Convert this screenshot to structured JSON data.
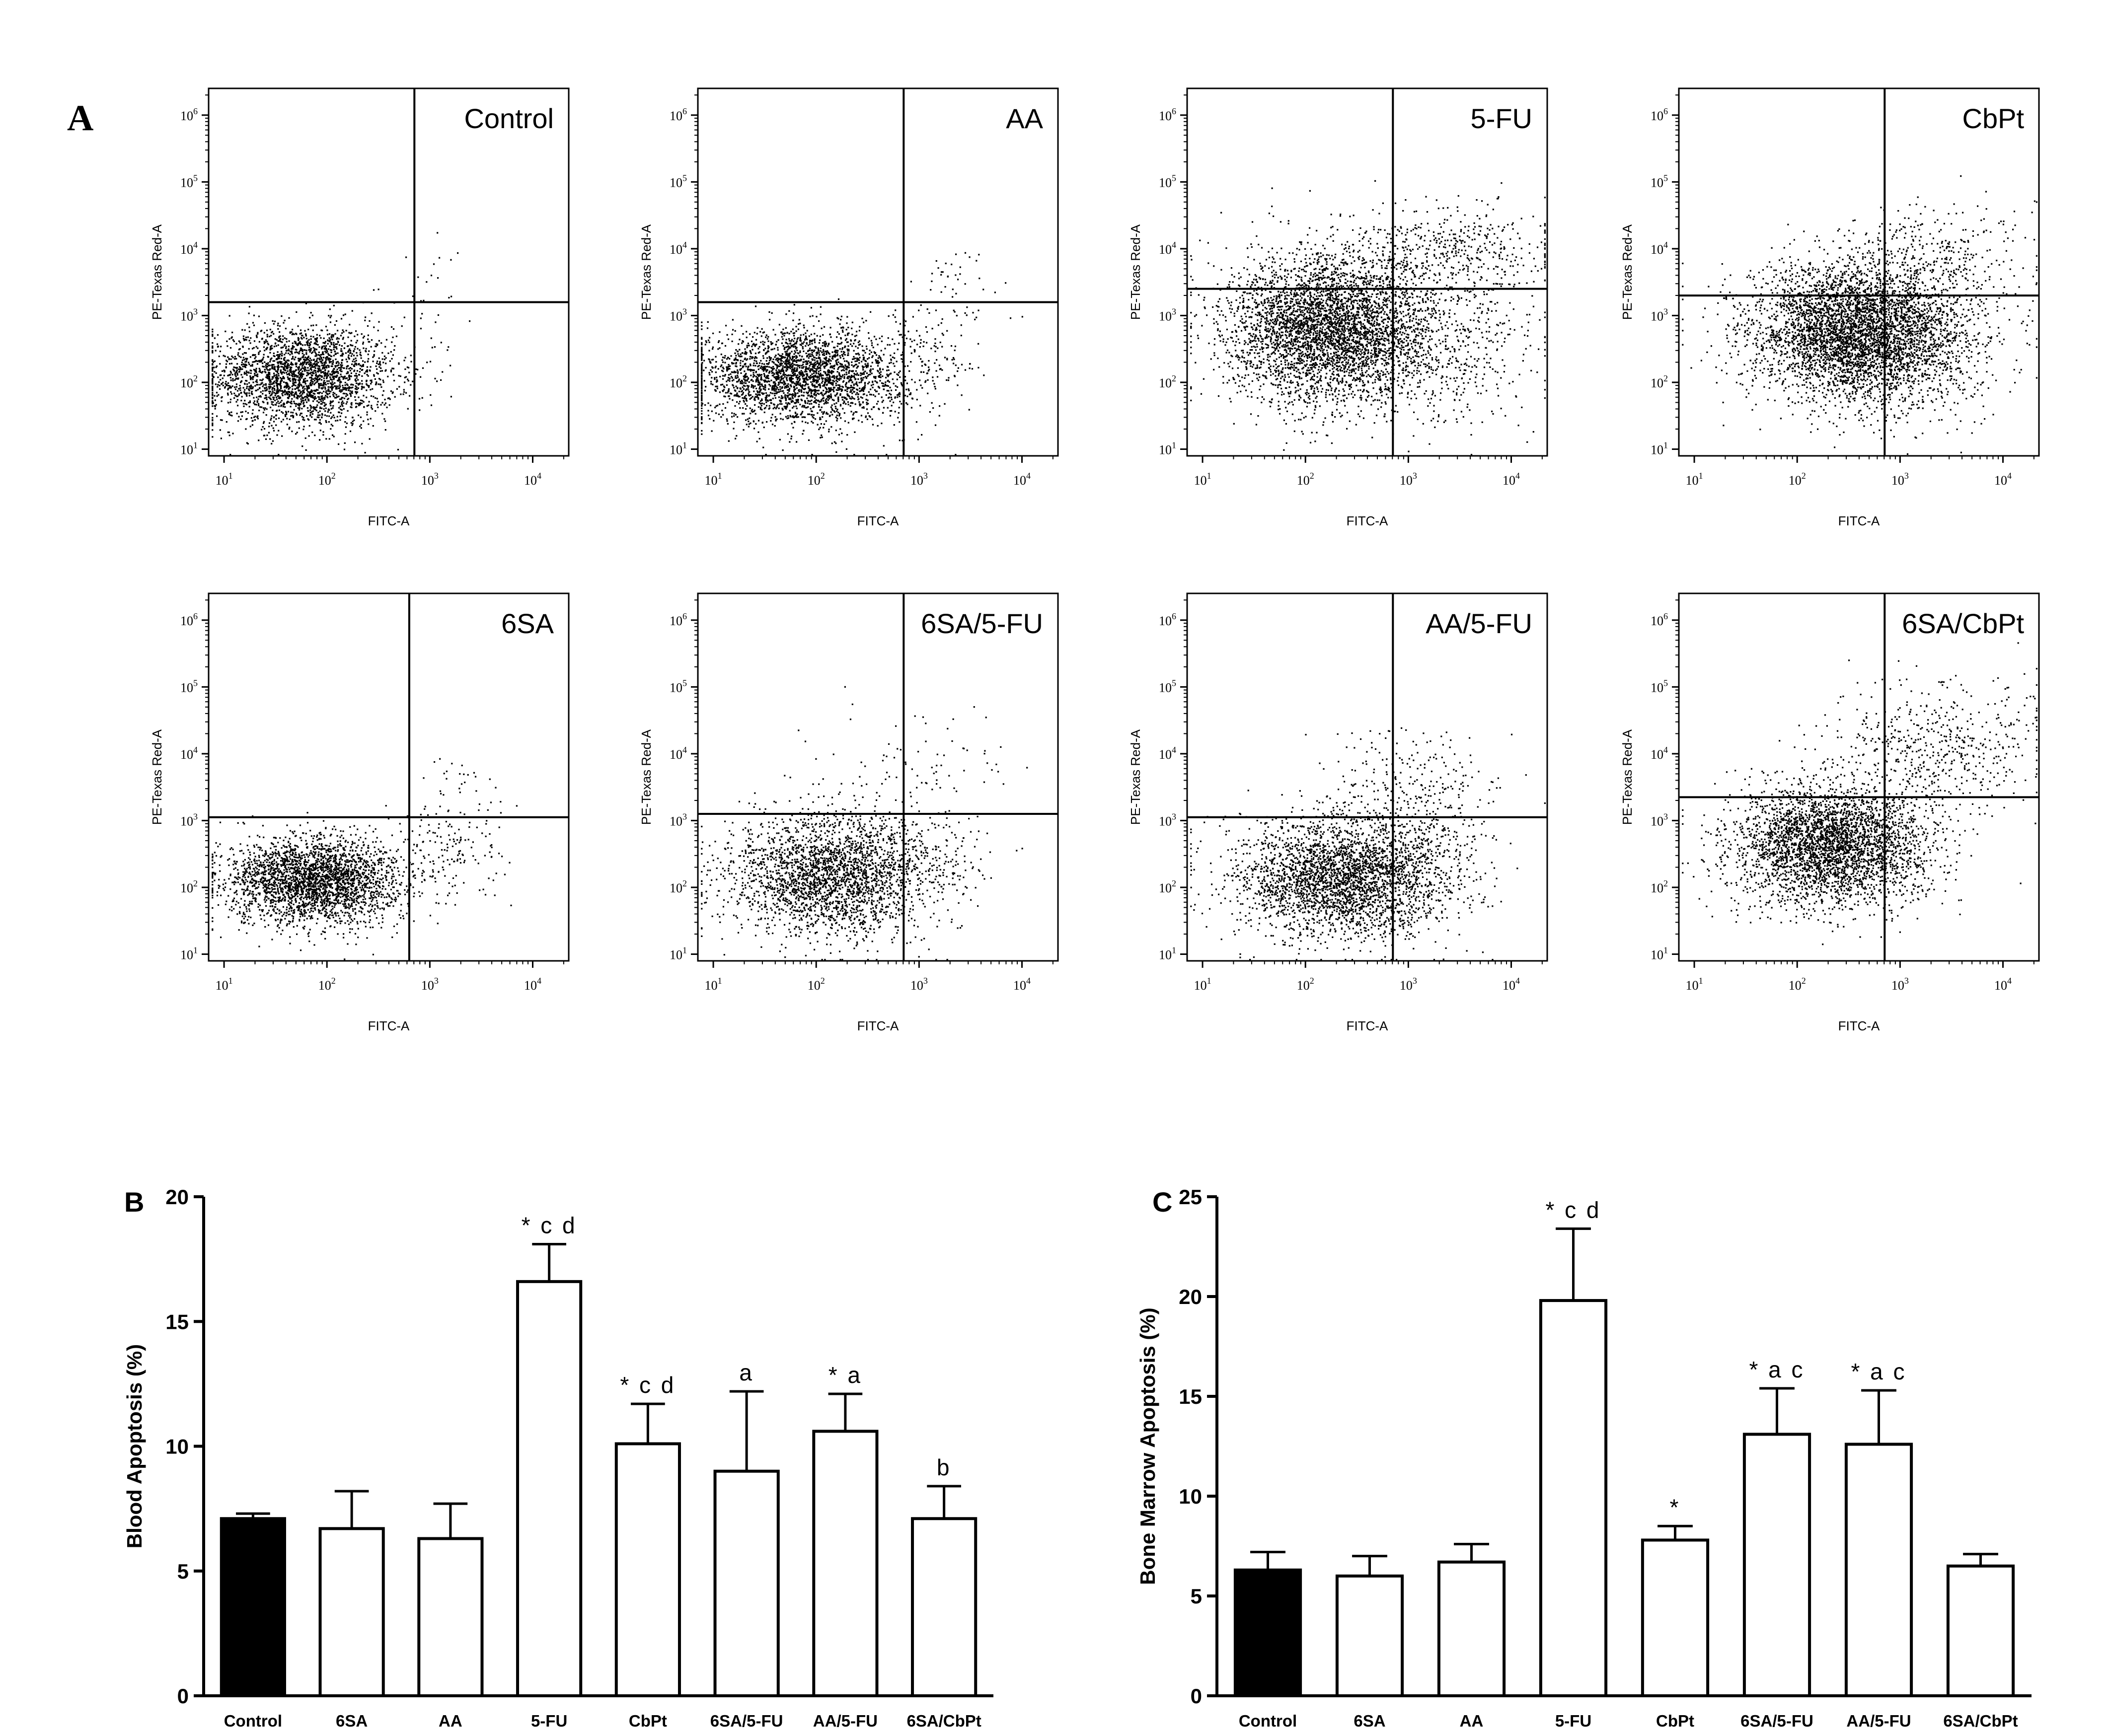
{
  "figure": {
    "panel_a_letter": "A",
    "panel_b_letter": "B",
    "panel_c_letter": "C",
    "colors": {
      "ink": "#000000",
      "control_fill": "#000000",
      "bar_fill": "#ffffff",
      "background": "#ffffff"
    }
  },
  "chart_data": [
    {
      "id": "A",
      "type": "scatter",
      "description_kind": "flow cytometry dot plots (8 panels)",
      "xlabel": "FITC-A",
      "ylabel": "PE-Texas Red-A",
      "x_ticks": [
        {
          "exp": 1,
          "label_base": "10",
          "label_exp": "1"
        },
        {
          "exp": 2,
          "label_base": "10",
          "label_exp": "2"
        },
        {
          "exp": 3,
          "label_base": "10",
          "label_exp": "3"
        },
        {
          "exp": 4,
          "label_base": "10",
          "label_exp": "4"
        }
      ],
      "y_ticks": [
        {
          "exp": 1,
          "label_base": "10",
          "label_exp": "1"
        },
        {
          "exp": 2,
          "label_base": "10",
          "label_exp": "2"
        },
        {
          "exp": 3,
          "label_base": "10",
          "label_exp": "3"
        },
        {
          "exp": 4,
          "label_base": "10",
          "label_exp": "4"
        },
        {
          "exp": 5,
          "label_base": "10",
          "label_exp": "5"
        },
        {
          "exp": 6,
          "label_base": "10",
          "label_exp": "6"
        }
      ],
      "xlim_log10": [
        0.85,
        4.35
      ],
      "ylim_log10": [
        0.9,
        6.4
      ],
      "panels": [
        {
          "title": "Control",
          "gate_x_log10": 2.85,
          "gate_y_log10": 3.2,
          "n_main": 2600,
          "main_center": [
            1.75,
            2.1
          ],
          "main_spread": [
            0.45,
            0.38
          ],
          "n_upper": 18,
          "upper_center": [
            3.0,
            3.7
          ],
          "upper_spread": [
            0.25,
            0.35
          ],
          "n_right": 12,
          "right_center": [
            3.05,
            2.6
          ],
          "right_spread": [
            0.2,
            0.4
          ]
        },
        {
          "title": "AA",
          "gate_x_log10": 2.85,
          "gate_y_log10": 3.2,
          "n_main": 2800,
          "main_center": [
            1.85,
            2.1
          ],
          "main_spread": [
            0.5,
            0.35
          ],
          "n_upper": 40,
          "upper_center": [
            3.35,
            3.5
          ],
          "upper_spread": [
            0.3,
            0.3
          ],
          "n_right": 120,
          "right_center": [
            3.1,
            2.4
          ],
          "right_spread": [
            0.25,
            0.45
          ]
        },
        {
          "title": "5-FU",
          "gate_x_log10": 2.85,
          "gate_y_log10": 3.4,
          "n_main": 4200,
          "main_center": [
            2.25,
            2.8
          ],
          "main_spread": [
            0.5,
            0.55
          ],
          "n_upper": 450,
          "upper_center": [
            3.4,
            4.0
          ],
          "upper_spread": [
            0.55,
            0.35
          ],
          "n_right": 450,
          "right_center": [
            3.4,
            2.6
          ],
          "right_spread": [
            0.45,
            0.6
          ]
        },
        {
          "title": "CbPt",
          "gate_x_log10": 2.85,
          "gate_y_log10": 3.3,
          "n_main": 4200,
          "main_center": [
            2.55,
            2.75
          ],
          "main_spread": [
            0.5,
            0.5
          ],
          "n_upper": 320,
          "upper_center": [
            3.3,
            3.9
          ],
          "upper_spread": [
            0.5,
            0.4
          ],
          "n_right": 500,
          "right_center": [
            3.25,
            2.6
          ],
          "right_spread": [
            0.45,
            0.55
          ]
        },
        {
          "title": "6SA",
          "gate_x_log10": 2.8,
          "gate_y_log10": 3.05,
          "n_main": 2800,
          "main_center": [
            1.85,
            2.1
          ],
          "main_spread": [
            0.42,
            0.33
          ],
          "n_upper": 30,
          "upper_center": [
            3.3,
            3.5
          ],
          "upper_spread": [
            0.25,
            0.25
          ],
          "n_right": 150,
          "right_center": [
            3.15,
            2.5
          ],
          "right_spread": [
            0.25,
            0.4
          ]
        },
        {
          "title": "6SA/5-FU",
          "gate_x_log10": 2.85,
          "gate_y_log10": 3.1,
          "n_main": 2600,
          "main_center": [
            2.15,
            2.2
          ],
          "main_spread": [
            0.5,
            0.45
          ],
          "n_upper": 80,
          "upper_center": [
            2.9,
            3.8
          ],
          "upper_spread": [
            0.45,
            0.4
          ],
          "n_right": 90,
          "right_center": [
            3.15,
            2.5
          ],
          "right_spread": [
            0.25,
            0.4
          ]
        },
        {
          "title": "AA/5-FU",
          "gate_x_log10": 2.85,
          "gate_y_log10": 3.05,
          "n_main": 3000,
          "main_center": [
            2.35,
            2.15
          ],
          "main_spread": [
            0.5,
            0.45
          ],
          "n_upper": 180,
          "upper_center": [
            3.0,
            3.6
          ],
          "upper_spread": [
            0.45,
            0.35
          ],
          "n_right": 260,
          "right_center": [
            3.2,
            2.5
          ],
          "right_spread": [
            0.3,
            0.5
          ]
        },
        {
          "title": "6SA/CbPt",
          "gate_x_log10": 2.85,
          "gate_y_log10": 3.35,
          "n_main": 3200,
          "main_center": [
            2.3,
            2.65
          ],
          "main_spread": [
            0.45,
            0.45
          ],
          "n_upper": 520,
          "upper_center": [
            3.3,
            4.1
          ],
          "upper_spread": [
            0.55,
            0.45
          ],
          "n_right": 200,
          "right_center": [
            3.1,
            2.7
          ],
          "right_spread": [
            0.3,
            0.5
          ]
        }
      ]
    },
    {
      "id": "B",
      "type": "bar",
      "title": "",
      "xlabel": "",
      "ylabel": "Blood Apoptosis (%)",
      "ylim": [
        0,
        20
      ],
      "yticks": [
        0,
        5,
        10,
        15,
        20
      ],
      "categories": [
        "Control",
        "6SA",
        "AA",
        "5-FU",
        "CbPt",
        "6SA/5-FU",
        "AA/5-FU",
        "6SA/CbPt"
      ],
      "values": [
        7.1,
        6.7,
        6.3,
        16.6,
        10.1,
        9.0,
        10.6,
        7.1
      ],
      "errors": [
        0.2,
        1.5,
        1.4,
        1.5,
        1.6,
        3.2,
        1.5,
        1.3
      ],
      "filled": [
        true,
        false,
        false,
        false,
        false,
        false,
        false,
        false
      ],
      "annotations": [
        "",
        "",
        "",
        "* c d",
        "* c d",
        "a",
        "* a",
        "b"
      ]
    },
    {
      "id": "C",
      "type": "bar",
      "title": "",
      "xlabel": "",
      "ylabel": "Bone Marrow Apoptosis (%)",
      "ylim": [
        0,
        25
      ],
      "yticks": [
        0,
        5,
        10,
        15,
        20,
        25
      ],
      "categories": [
        "Control",
        "6SA",
        "AA",
        "5-FU",
        "CbPt",
        "6SA/5-FU",
        "AA/5-FU",
        "6SA/CbPt"
      ],
      "values": [
        6.3,
        6.0,
        6.7,
        19.8,
        7.8,
        13.1,
        12.6,
        6.5
      ],
      "errors": [
        0.9,
        1.0,
        0.9,
        3.6,
        0.7,
        2.3,
        2.7,
        0.6
      ],
      "filled": [
        true,
        false,
        false,
        false,
        false,
        false,
        false,
        false
      ],
      "annotations": [
        "",
        "",
        "",
        "* c d",
        "*",
        "* a c",
        "* a c",
        ""
      ]
    }
  ]
}
